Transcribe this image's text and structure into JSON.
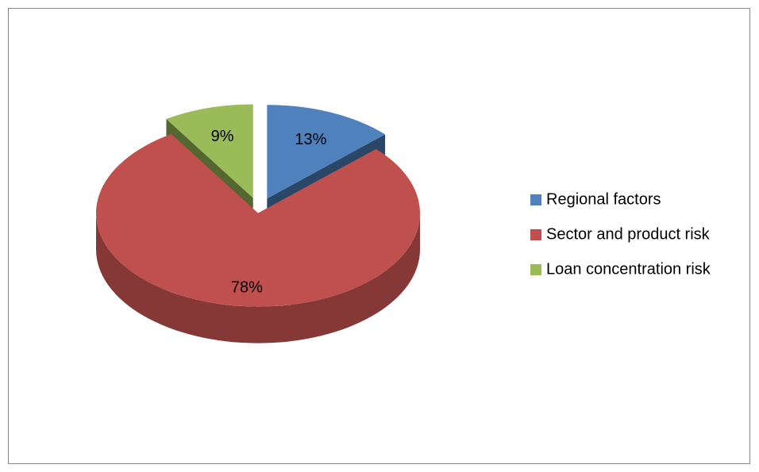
{
  "chart_data": {
    "type": "pie",
    "categories": [
      "Regional factors",
      "Sector and product risk",
      "Loan concentration risk"
    ],
    "values": [
      13,
      78,
      9
    ],
    "value_labels": [
      "13%",
      "78%",
      "9%"
    ],
    "colors": [
      "#4f81bd",
      "#c0504d",
      "#9bbb59"
    ],
    "legend": "right"
  }
}
